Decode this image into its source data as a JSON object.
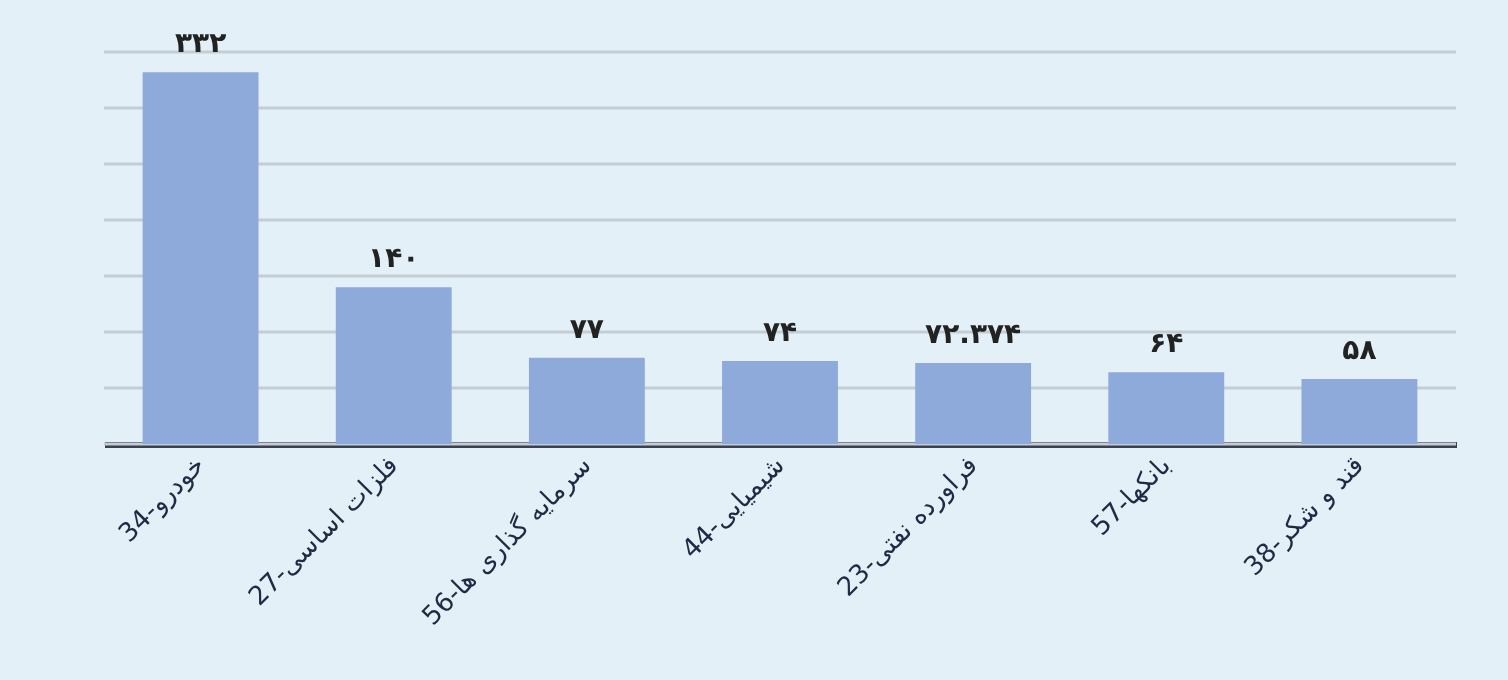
{
  "chart_data": {
    "type": "bar",
    "categories": [
      "34-خودرو",
      "27-فلزات اساسی",
      "56-سرمایه گذاری ها",
      "44-شیمیایی",
      "23-فراورده نفتی",
      "57-بانکها",
      "38-قند و شکر"
    ],
    "values": [
      332,
      140,
      77,
      74,
      72.374,
      64,
      58
    ],
    "value_labels": [
      "۳۳۲",
      "۱۴۰",
      "۷۷",
      "۷۴",
      "۷۲.۳۷۴",
      "۶۴",
      "۵۸"
    ],
    "color": "#8eaadb",
    "ylim": [
      0,
      350
    ],
    "yticks": [
      {
        "value": 0,
        "label": null
      },
      {
        "value": 50,
        "label": null
      },
      {
        "value": 100,
        "label": null
      },
      {
        "value": 150,
        "label": null
      },
      {
        "value": 200,
        "label": null
      },
      {
        "value": 250,
        "label": null
      },
      {
        "value": 300,
        "label": null
      },
      {
        "value": 350,
        "label": null
      }
    ],
    "grid": "y",
    "tick_labels": "x"
  }
}
